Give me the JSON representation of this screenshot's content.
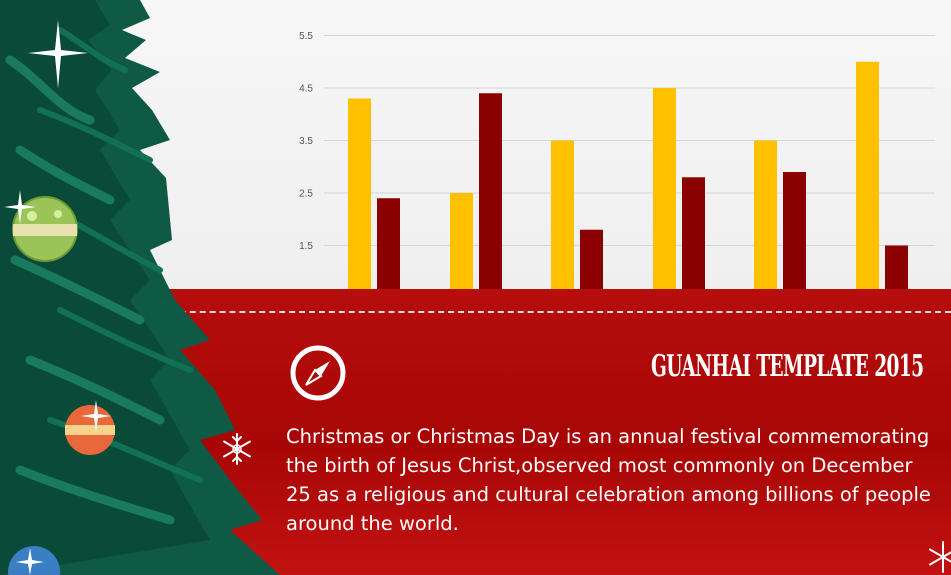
{
  "chart_data": {
    "type": "bar",
    "categories": [
      "",
      "",
      "",
      "",
      "",
      ""
    ],
    "series": [
      {
        "values": [
          4.3,
          2.5,
          3.5,
          4.5,
          3.5,
          5.0
        ],
        "color": "#FFC000"
      },
      {
        "values": [
          2.4,
          4.4,
          1.8,
          2.8,
          2.9,
          1.5
        ],
        "color": "#8B0000"
      }
    ],
    "yticks": [
      "1.5",
      "2.5",
      "3.5",
      "4.5",
      "5.5"
    ],
    "ylim": [
      1.5,
      5.5
    ],
    "grid": true,
    "title": "",
    "xlabel": "",
    "ylabel": ""
  },
  "banner": {
    "brand": "GUANHAI TEMPLATE 2015",
    "body": "Christmas or Christmas Day is an annual festival commemorating the birth of Jesus Christ,observed most commonly on December 25 as a religious and cultural celebration among billions of people around the world."
  },
  "icons": {
    "compass": "compass-icon",
    "snowflake": "snowflake-icon",
    "tree": "christmas-tree-illustration"
  },
  "colors": {
    "panel_red": "#B60D0D",
    "bar_gold": "#FFC000",
    "bar_dark_red": "#8B0000",
    "tree_green": "#0E5A45"
  }
}
